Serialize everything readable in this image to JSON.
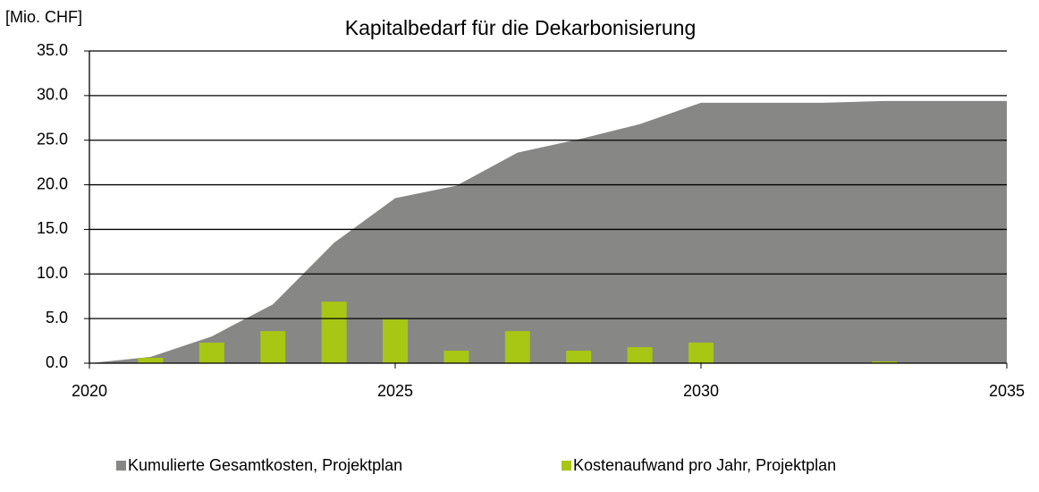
{
  "chart_data": {
    "type": "combo",
    "title": "Kapitalbedarf für die Dekarbonisierung",
    "y_label": "[Mio. CHF]",
    "x": [
      2020,
      2021,
      2022,
      2023,
      2024,
      2025,
      2026,
      2027,
      2028,
      2029,
      2030,
      2031,
      2032,
      2033,
      2034,
      2035
    ],
    "series": [
      {
        "name": "Kumulierte Gesamtkosten, Projektplan",
        "type": "area",
        "color": "#878785",
        "values": [
          0,
          0.7,
          3.0,
          6.6,
          13.5,
          18.5,
          19.9,
          23.6,
          25.1,
          26.8,
          29.2,
          29.2,
          29.2,
          29.4,
          29.4,
          29.4
        ]
      },
      {
        "name": "Kostenaufwand pro Jahr, Projektplan",
        "type": "bar",
        "color": "#a8c614",
        "values": [
          0,
          0.6,
          2.3,
          3.6,
          6.9,
          4.9,
          1.4,
          3.6,
          1.4,
          1.8,
          2.3,
          0,
          0,
          0.2,
          0,
          0
        ]
      }
    ],
    "xlim": [
      2020,
      2035
    ],
    "xticks": [
      2020,
      2025,
      2030,
      2035
    ],
    "ylim": [
      0,
      35
    ],
    "yticks": [
      {
        "value": 0,
        "label": "0.0"
      },
      {
        "value": 5,
        "label": "5.0"
      },
      {
        "value": 10,
        "label": "10.0"
      },
      {
        "value": 15,
        "label": "15.0"
      },
      {
        "value": 20,
        "label": "20.0"
      },
      {
        "value": 25,
        "label": "25.0"
      },
      {
        "value": 30,
        "label": "30.0"
      },
      {
        "value": 35,
        "label": "35.0"
      }
    ],
    "grid": true,
    "legend": "bottom"
  }
}
